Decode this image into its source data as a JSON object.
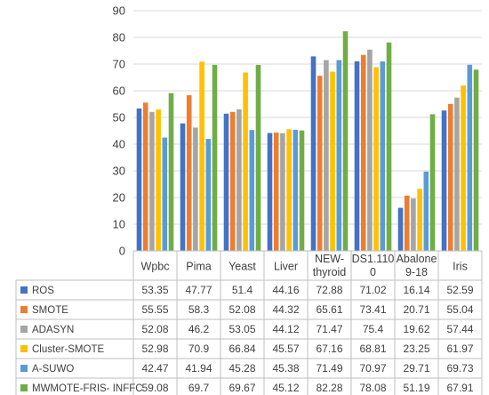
{
  "chart_data": {
    "type": "bar",
    "title": "",
    "xlabel": "",
    "ylabel": "",
    "ylim": [
      0,
      90
    ],
    "yticks": [
      0,
      10,
      20,
      30,
      40,
      50,
      60,
      70,
      80,
      90
    ],
    "grid": true,
    "legend": "data-table-left",
    "categories": [
      "Wpbc",
      "Pima",
      "Yeast",
      "Liver",
      "NEW-thyroid",
      "DS1.1100",
      "Abalone 9-18",
      "Iris"
    ],
    "category_lines": [
      [
        "Wpbc"
      ],
      [
        "Pima"
      ],
      [
        "Yeast"
      ],
      [
        "Liver"
      ],
      [
        "NEW-",
        "thyroid"
      ],
      [
        "DS1.110",
        "0"
      ],
      [
        "Abalone",
        "9-18"
      ],
      [
        "Iris"
      ]
    ],
    "series": [
      {
        "name": "ROS",
        "color": "#4472C4",
        "values": [
          53.35,
          47.77,
          51.4,
          44.16,
          72.88,
          71.02,
          16.14,
          52.59
        ]
      },
      {
        "name": "SMOTE",
        "color": "#ED7D31",
        "values": [
          55.55,
          58.3,
          52.08,
          44.32,
          65.61,
          73.41,
          20.71,
          55.04
        ]
      },
      {
        "name": "ADASYN",
        "color": "#A5A5A5",
        "values": [
          52.08,
          46.2,
          53.05,
          44.12,
          71.47,
          75.4,
          19.62,
          57.44
        ]
      },
      {
        "name": "Cluster-SMOTE",
        "color": "#FFC000",
        "values": [
          52.98,
          70.9,
          66.84,
          45.57,
          67.16,
          68.81,
          23.25,
          61.97
        ]
      },
      {
        "name": "A-SUWO",
        "color": "#5B9BD5",
        "values": [
          42.47,
          41.94,
          45.28,
          45.38,
          71.49,
          70.97,
          29.71,
          69.73
        ]
      },
      {
        "name": "MWMOTE-FRIS- INFFC",
        "color": "#70AD47",
        "values": [
          59.08,
          69.7,
          69.67,
          45.12,
          82.28,
          78.08,
          51.19,
          67.91
        ]
      }
    ]
  }
}
